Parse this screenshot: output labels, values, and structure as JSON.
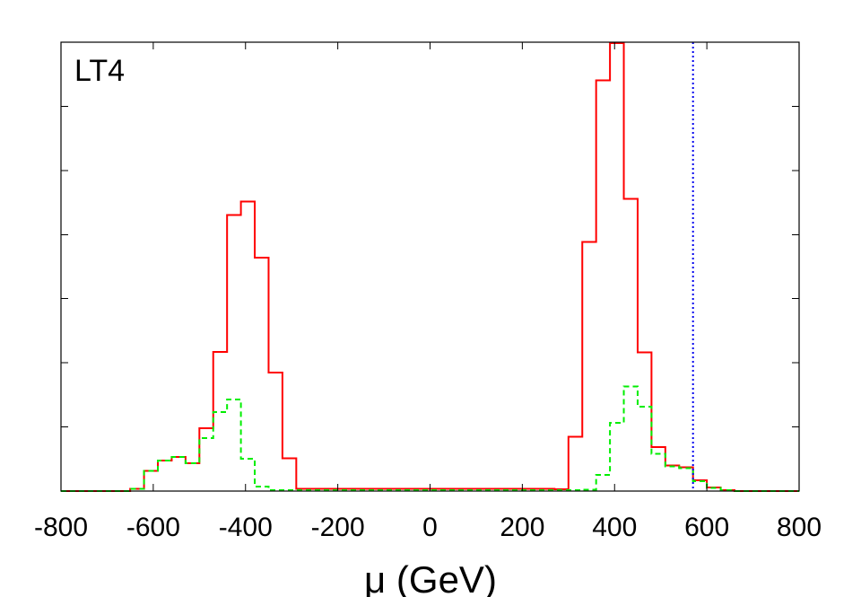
{
  "chart_data": {
    "type": "histogram",
    "panel_label": "LT4",
    "xlabel": "μ (GeV)",
    "ylabel": "",
    "xlim": [
      -800,
      800
    ],
    "ylim": [
      0,
      1
    ],
    "x_ticks": [
      -800,
      -600,
      -400,
      -200,
      0,
      200,
      400,
      600,
      800
    ],
    "x_tick_labels": [
      "-800",
      "-600",
      "-400",
      "-200",
      "0",
      "200",
      "400",
      "600",
      "800"
    ],
    "y_ticks": [
      0.143,
      0.286,
      0.429,
      0.571,
      0.714,
      0.857
    ],
    "y_tick_labels_visible": false,
    "grid": false,
    "legend": "none",
    "bin_edges": [
      -650,
      -620,
      -590,
      -560,
      -530,
      -500,
      -470,
      -440,
      -410,
      -380,
      -350,
      -320,
      -290,
      -260,
      -230,
      270,
      300,
      330,
      360,
      390,
      420,
      450,
      480,
      510,
      540,
      570,
      600,
      630,
      660
    ],
    "series": [
      {
        "color": "#ff0000",
        "style": "solid",
        "bins": [
          {
            "x0": -650,
            "x1": -620,
            "y": 0.005
          },
          {
            "x0": -620,
            "x1": -590,
            "y": 0.045
          },
          {
            "x0": -590,
            "x1": -560,
            "y": 0.068
          },
          {
            "x0": -560,
            "x1": -530,
            "y": 0.076
          },
          {
            "x0": -530,
            "x1": -500,
            "y": 0.062
          },
          {
            "x0": -500,
            "x1": -470,
            "y": 0.14
          },
          {
            "x0": -470,
            "x1": -440,
            "y": 0.31
          },
          {
            "x0": -440,
            "x1": -410,
            "y": 0.615
          },
          {
            "x0": -410,
            "x1": -380,
            "y": 0.645
          },
          {
            "x0": -380,
            "x1": -350,
            "y": 0.52
          },
          {
            "x0": -350,
            "x1": -320,
            "y": 0.264
          },
          {
            "x0": -320,
            "x1": -290,
            "y": 0.073
          },
          {
            "x0": -290,
            "x1": -260,
            "y": 0.005
          },
          {
            "x0": 270,
            "x1": 300,
            "y": 0.004
          },
          {
            "x0": 300,
            "x1": 330,
            "y": 0.121
          },
          {
            "x0": 330,
            "x1": 360,
            "y": 0.555
          },
          {
            "x0": 360,
            "x1": 390,
            "y": 0.915
          },
          {
            "x0": 390,
            "x1": 420,
            "y": 0.998
          },
          {
            "x0": 420,
            "x1": 450,
            "y": 0.651
          },
          {
            "x0": 450,
            "x1": 480,
            "y": 0.309
          },
          {
            "x0": 480,
            "x1": 510,
            "y": 0.098
          },
          {
            "x0": 510,
            "x1": 540,
            "y": 0.057
          },
          {
            "x0": 540,
            "x1": 570,
            "y": 0.053
          },
          {
            "x0": 570,
            "x1": 600,
            "y": 0.024
          },
          {
            "x0": 600,
            "x1": 630,
            "y": 0.008
          },
          {
            "x0": 630,
            "x1": 660,
            "y": 0.002
          }
        ]
      },
      {
        "color": "#00ee00",
        "style": "dashed",
        "bins": [
          {
            "x0": -650,
            "x1": -620,
            "y": 0.005
          },
          {
            "x0": -620,
            "x1": -590,
            "y": 0.045
          },
          {
            "x0": -590,
            "x1": -560,
            "y": 0.068
          },
          {
            "x0": -560,
            "x1": -530,
            "y": 0.076
          },
          {
            "x0": -530,
            "x1": -500,
            "y": 0.062
          },
          {
            "x0": -500,
            "x1": -470,
            "y": 0.118
          },
          {
            "x0": -470,
            "x1": -440,
            "y": 0.176
          },
          {
            "x0": -440,
            "x1": -410,
            "y": 0.204
          },
          {
            "x0": -410,
            "x1": -380,
            "y": 0.072
          },
          {
            "x0": -380,
            "x1": -350,
            "y": 0.01
          },
          {
            "x0": -350,
            "x1": -320,
            "y": 0.002
          },
          {
            "x0": 330,
            "x1": 360,
            "y": 0.003
          },
          {
            "x0": 360,
            "x1": 390,
            "y": 0.036
          },
          {
            "x0": 390,
            "x1": 420,
            "y": 0.152
          },
          {
            "x0": 420,
            "x1": 450,
            "y": 0.233
          },
          {
            "x0": 450,
            "x1": 480,
            "y": 0.188
          },
          {
            "x0": 480,
            "x1": 510,
            "y": 0.083
          },
          {
            "x0": 510,
            "x1": 540,
            "y": 0.055
          },
          {
            "x0": 540,
            "x1": 570,
            "y": 0.051
          },
          {
            "x0": 570,
            "x1": 600,
            "y": 0.022
          },
          {
            "x0": 600,
            "x1": 630,
            "y": 0.007
          },
          {
            "x0": 630,
            "x1": 660,
            "y": 0.002
          }
        ]
      }
    ],
    "vertical_lines": [
      {
        "x": 570,
        "color": "#0000ee",
        "style": "dotted"
      }
    ]
  }
}
